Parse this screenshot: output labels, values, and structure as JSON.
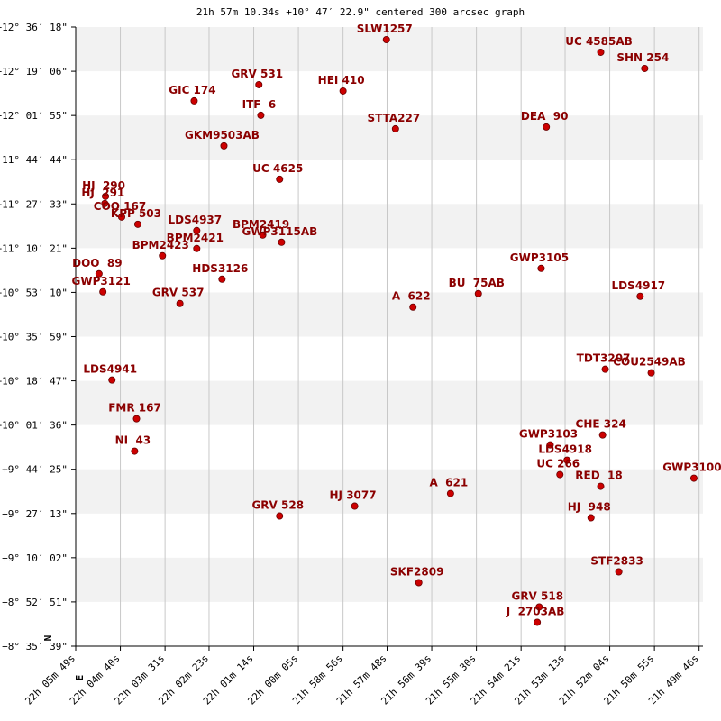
{
  "chart_data": {
    "type": "scatter",
    "title": "21h 57m 10.34s +10° 47′ 22.9\" centered 300 arcsec graph",
    "north_label": "N",
    "east_label": "E",
    "color": "#cc0000",
    "label_color": "#8b0000",
    "grid": true,
    "xlim": [
      3949,
      2980
    ],
    "ylim": [
      30939,
      45378
    ],
    "xticks": [
      {
        "value": 3949,
        "label": "22h 05m 49s"
      },
      {
        "value": 3880,
        "label": "22h 04m 40s"
      },
      {
        "value": 3811,
        "label": "22h 03m 31s"
      },
      {
        "value": 3743,
        "label": "22h 02m 23s"
      },
      {
        "value": 3674,
        "label": "22h 01m 14s"
      },
      {
        "value": 3605,
        "label": "22h 00m 05s"
      },
      {
        "value": 3536,
        "label": "21h 58m 56s"
      },
      {
        "value": 3468,
        "label": "21h 57m 48s"
      },
      {
        "value": 3399,
        "label": "21h 56m 39s"
      },
      {
        "value": 3330,
        "label": "21h 55m 30s"
      },
      {
        "value": 3261,
        "label": "21h 54m 21s"
      },
      {
        "value": 3193,
        "label": "21h 53m 13s"
      },
      {
        "value": 3124,
        "label": "21h 52m 04s"
      },
      {
        "value": 3055,
        "label": "21h 50m 55s"
      },
      {
        "value": 2986,
        "label": "21h 49m 46s"
      }
    ],
    "yticks": [
      {
        "value": 45378,
        "label": "+12° 36′ 18\""
      },
      {
        "value": 44346,
        "label": "+12° 19′ 06\""
      },
      {
        "value": 43315,
        "label": "+12° 01′ 55\""
      },
      {
        "value": 42284,
        "label": "+11° 44′ 44\""
      },
      {
        "value": 41253,
        "label": "+11° 27′ 33\""
      },
      {
        "value": 40221,
        "label": "+11° 10′ 21\""
      },
      {
        "value": 39190,
        "label": "+10° 53′ 10\""
      },
      {
        "value": 38159,
        "label": "+10° 35′ 59\""
      },
      {
        "value": 37127,
        "label": "+10° 18′ 47\""
      },
      {
        "value": 36096,
        "label": "+10° 01′ 36\""
      },
      {
        "value": 35065,
        "label": "+9° 44′ 25\""
      },
      {
        "value": 34033,
        "label": "+9° 27′ 13\""
      },
      {
        "value": 33002,
        "label": "+9° 10′ 02\""
      },
      {
        "value": 31971,
        "label": "+8° 52′ 51\""
      },
      {
        "value": 30939,
        "label": "+8° 35′ 39\""
      }
    ],
    "labels": [
      "SLW1257",
      "UC 4585AB",
      "SHN 254",
      "GRV 531",
      "HEI 410",
      "GIC 174",
      "ITF  6",
      "STTA227",
      "DEA  90",
      "GKM9503AB",
      "UC 4625",
      "HJ  290",
      "HJ  291",
      "COO 167",
      "KPP 503",
      "LDS4937",
      "BPM2421",
      "BPM2419",
      "GWP3115AB",
      "BPM2423",
      "DOO  89",
      "GWP3121",
      "HDS3126",
      "GRV 537",
      "A  622",
      "BU  75AB",
      "GWP3105",
      "LDS4917",
      "LDS4941",
      "TDT3207",
      "COU2549AB",
      "FMR 167",
      "NI  43",
      "CHE 324",
      "GWP3103",
      "LDS4918",
      "UC 266",
      "RED  18",
      "GWP3100",
      "A  621",
      "HJ 3077",
      "GRV 528",
      "HJ  948",
      "STF2833",
      "SKF2809",
      "GRV 518",
      "J  2703AB"
    ],
    "x": [
      3469,
      3138,
      3070,
      3666,
      3536,
      3766,
      3663,
      3455,
      3222,
      3720,
      3634,
      3903,
      3904,
      3878,
      3853,
      3762,
      3762,
      3660,
      3631,
      3815,
      3913,
      3907,
      3723,
      3788,
      3428,
      3327,
      3230,
      3077,
      3893,
      3131,
      3060,
      3855,
      3858,
      3135,
      3216,
      3190,
      3201,
      3138,
      2994,
      3370,
      3518,
      3634,
      3153,
      3110,
      3419,
      3233,
      3236
    ],
    "values": [
      45084,
      44790,
      44412,
      44034,
      43887,
      43656,
      43320,
      43005,
      43047,
      42606,
      41829,
      41430,
      41262,
      40947,
      40779,
      40632,
      40212,
      40527,
      40359,
      40044,
      39624,
      39204,
      39498,
      38931,
      38847,
      39162,
      39750,
      39099,
      37146,
      37398,
      37314,
      36243,
      35487,
      35865,
      35634,
      35277,
      34941,
      34668,
      34857,
      34500,
      34206,
      33975,
      33933,
      32673,
      32421,
      31854,
      31497
    ]
  }
}
